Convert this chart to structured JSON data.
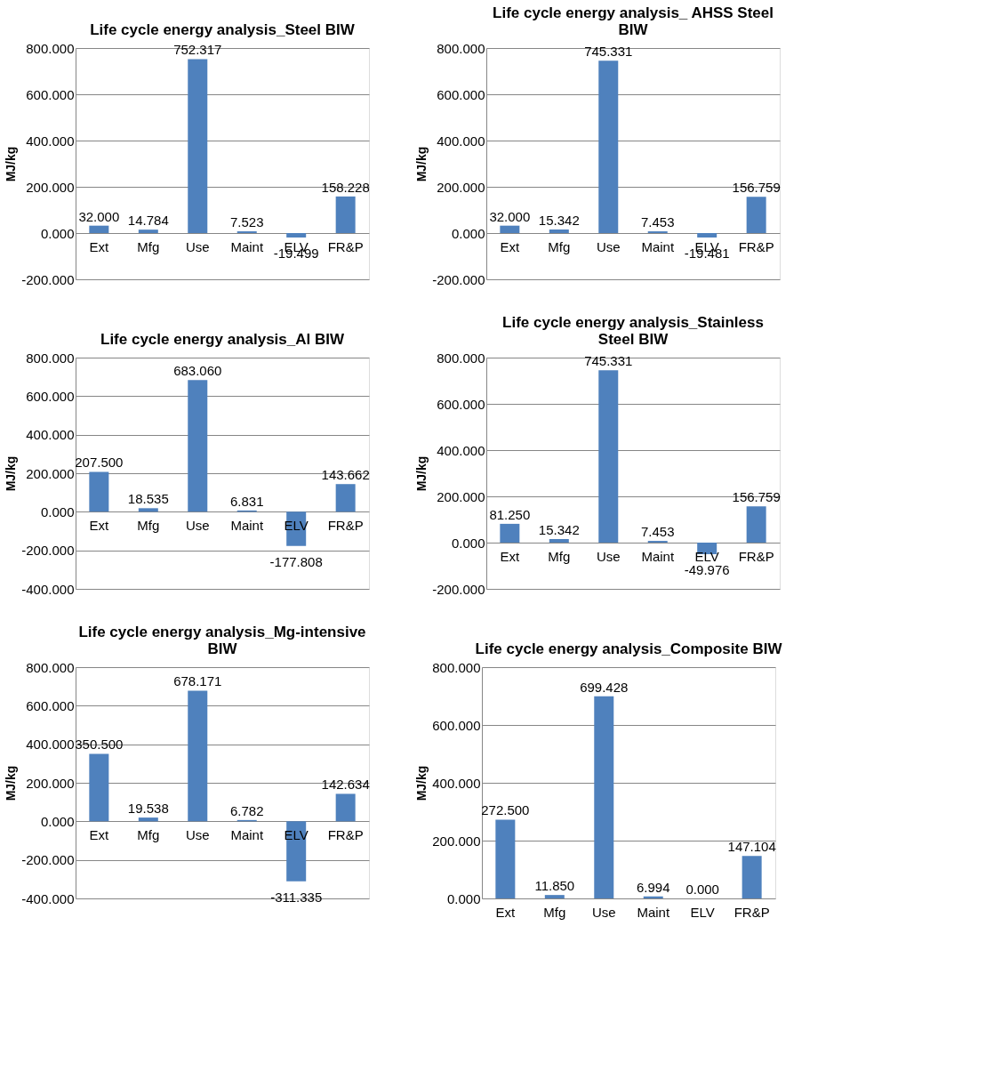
{
  "chart_data": [
    {
      "type": "bar",
      "title": "Life cycle energy analysis_Steel BIW",
      "ylabel": "MJ/kg",
      "categories": [
        "Ext",
        "Mfg",
        "Use",
        "Maint",
        "ELV",
        "FR&P"
      ],
      "values": [
        32.0,
        14.784,
        752.317,
        7.523,
        -19.499,
        158.228
      ],
      "value_labels": [
        "32.000",
        "14.784",
        "752.317",
        "7.523",
        "-19.499",
        "158.228"
      ],
      "color": "#4f81bd",
      "ylim": [
        -200,
        800
      ],
      "yticks": [
        {
          "value": -200,
          "label": "-200.000"
        },
        {
          "value": 0,
          "label": "0.000"
        },
        {
          "value": 200,
          "label": "200.000"
        },
        {
          "value": 400,
          "label": "400.000"
        },
        {
          "value": 600,
          "label": "600.000"
        },
        {
          "value": 800,
          "label": "800.000"
        }
      ],
      "grid": "y"
    },
    {
      "type": "bar",
      "title": "Life cycle energy analysis_ AHSS Steel BIW",
      "ylabel": "MJ/kg",
      "categories": [
        "Ext",
        "Mfg",
        "Use",
        "Maint",
        "ELV",
        "FR&P"
      ],
      "values": [
        32.0,
        15.342,
        745.331,
        7.453,
        -19.481,
        156.759
      ],
      "value_labels": [
        "32.000",
        "15.342",
        "745.331",
        "7.453",
        "-19.481",
        "156.759"
      ],
      "color": "#4f81bd",
      "ylim": [
        -200,
        800
      ],
      "yticks": [
        {
          "value": -200,
          "label": "-200.000"
        },
        {
          "value": 0,
          "label": "0.000"
        },
        {
          "value": 200,
          "label": "200.000"
        },
        {
          "value": 400,
          "label": "400.000"
        },
        {
          "value": 600,
          "label": "600.000"
        },
        {
          "value": 800,
          "label": "800.000"
        }
      ],
      "grid": "y"
    },
    {
      "type": "bar",
      "title": "Life cycle energy analysis_Al BIW",
      "ylabel": "MJ/kg",
      "categories": [
        "Ext",
        "Mfg",
        "Use",
        "Maint",
        "ELV",
        "FR&P"
      ],
      "values": [
        207.5,
        18.535,
        683.06,
        6.831,
        -177.808,
        143.662
      ],
      "value_labels": [
        "207.500",
        "18.535",
        "683.060",
        "6.831",
        "-177.808",
        "143.662"
      ],
      "color": "#4f81bd",
      "ylim": [
        -400,
        800
      ],
      "yticks": [
        {
          "value": -400,
          "label": "-400.000"
        },
        {
          "value": -200,
          "label": "-200.000"
        },
        {
          "value": 0,
          "label": "0.000"
        },
        {
          "value": 200,
          "label": "200.000"
        },
        {
          "value": 400,
          "label": "400.000"
        },
        {
          "value": 600,
          "label": "600.000"
        },
        {
          "value": 800,
          "label": "800.000"
        }
      ],
      "grid": "y"
    },
    {
      "type": "bar",
      "title": "Life cycle energy analysis_Stainless Steel BIW",
      "ylabel": "MJ/kg",
      "categories": [
        "Ext",
        "Mfg",
        "Use",
        "Maint",
        "ELV",
        "FR&P"
      ],
      "values": [
        81.25,
        15.342,
        745.331,
        7.453,
        -49.976,
        156.759
      ],
      "value_labels": [
        "81.250",
        "15.342",
        "745.331",
        "7.453",
        "-49.976",
        "156.759"
      ],
      "color": "#4f81bd",
      "ylim": [
        -200,
        800
      ],
      "yticks": [
        {
          "value": -200,
          "label": "-200.000"
        },
        {
          "value": 0,
          "label": "0.000"
        },
        {
          "value": 200,
          "label": "200.000"
        },
        {
          "value": 400,
          "label": "400.000"
        },
        {
          "value": 600,
          "label": "600.000"
        },
        {
          "value": 800,
          "label": "800.000"
        }
      ],
      "grid": "y"
    },
    {
      "type": "bar",
      "title": "Life cycle energy analysis_Mg-intensive BIW",
      "ylabel": "MJ/kg",
      "categories": [
        "Ext",
        "Mfg",
        "Use",
        "Maint",
        "ELV",
        "FR&P"
      ],
      "values": [
        350.5,
        19.538,
        678.171,
        6.782,
        -311.335,
        142.634
      ],
      "value_labels": [
        "350.500",
        "19.538",
        "678.171",
        "6.782",
        "-311.335",
        "142.634"
      ],
      "color": "#4f81bd",
      "ylim": [
        -400,
        800
      ],
      "yticks": [
        {
          "value": -400,
          "label": "-400.000"
        },
        {
          "value": -200,
          "label": "-200.000"
        },
        {
          "value": 0,
          "label": "0.000"
        },
        {
          "value": 200,
          "label": "200.000"
        },
        {
          "value": 400,
          "label": "400.000"
        },
        {
          "value": 600,
          "label": "600.000"
        },
        {
          "value": 800,
          "label": "800.000"
        }
      ],
      "grid": "y"
    },
    {
      "type": "bar",
      "title": "Life cycle energy analysis_Composite BIW",
      "ylabel": "MJ/kg",
      "categories": [
        "Ext",
        "Mfg",
        "Use",
        "Maint",
        "ELV",
        "FR&P"
      ],
      "values": [
        272.5,
        11.85,
        699.428,
        6.994,
        0.0,
        147.104
      ],
      "value_labels": [
        "272.500",
        "11.850",
        "699.428",
        "6.994",
        "0.000",
        "147.104"
      ],
      "color": "#4f81bd",
      "ylim": [
        0,
        800
      ],
      "yticks": [
        {
          "value": 0,
          "label": "0.000"
        },
        {
          "value": 200,
          "label": "200.000"
        },
        {
          "value": 400,
          "label": "400.000"
        },
        {
          "value": 600,
          "label": "600.000"
        },
        {
          "value": 800,
          "label": "800.000"
        }
      ],
      "grid": "y"
    }
  ]
}
